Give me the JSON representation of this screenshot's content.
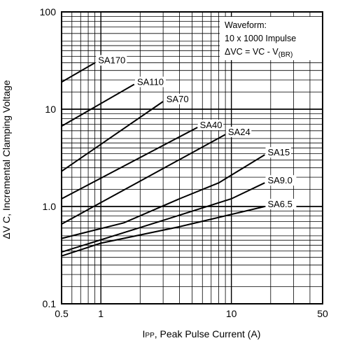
{
  "chart_data": {
    "type": "line",
    "x_scale": "log",
    "y_scale": "log",
    "xlim": [
      0.5,
      50
    ],
    "ylim": [
      0.1,
      100
    ],
    "grid": true,
    "x_ticks": [
      {
        "value": 0.5,
        "label": "0.5"
      },
      {
        "value": 1,
        "label": "1"
      },
      {
        "value": 10,
        "label": "10"
      },
      {
        "value": 50,
        "label": "50"
      }
    ],
    "y_ticks": [
      {
        "value": 0.1,
        "label": "0.1"
      },
      {
        "value": 1,
        "label": "1.0"
      },
      {
        "value": 10,
        "label": "10"
      },
      {
        "value": 100,
        "label": "100"
      }
    ],
    "xlabel_main": "I",
    "xlabel_sub": "PP",
    "xlabel_rest": ", Peak Pulse Current (A)",
    "ylabel": "ΔV C, Incremental Clamping Voltage",
    "annotation": {
      "line1": "Waveform:",
      "line2": "10 x 1000 Impulse",
      "line3_main": "ΔVC = VC - V",
      "line3_sub": "(BR)"
    },
    "series": [
      {
        "name": "SA170",
        "points": [
          [
            0.5,
            19
          ],
          [
            0.9,
            30
          ]
        ],
        "label_at": [
          0.93,
          30
        ]
      },
      {
        "name": "SA110",
        "points": [
          [
            0.5,
            6.7
          ],
          [
            1.8,
            18
          ]
        ],
        "label_at": [
          1.85,
          18
        ]
      },
      {
        "name": "SA70",
        "points": [
          [
            0.5,
            2.3
          ],
          [
            3.0,
            12
          ]
        ],
        "label_at": [
          3.1,
          12
        ]
      },
      {
        "name": "SA40",
        "points": [
          [
            0.5,
            1.2
          ],
          [
            5.5,
            6.5
          ]
        ],
        "label_at": [
          5.6,
          6.5
        ]
      },
      {
        "name": "SA24",
        "points": [
          [
            0.5,
            0.66
          ],
          [
            9.0,
            5.5
          ]
        ],
        "label_at": [
          9.2,
          5.5
        ]
      },
      {
        "name": "SA15",
        "points": [
          [
            0.5,
            0.47
          ],
          [
            1.5,
            0.68
          ],
          [
            4.0,
            1.2
          ],
          [
            8.0,
            1.75
          ],
          [
            18.0,
            3.4
          ]
        ],
        "label_at": [
          18.5,
          3.4
        ]
      },
      {
        "name": "SA9.0",
        "points": [
          [
            0.5,
            0.34
          ],
          [
            3.0,
            0.72
          ],
          [
            10.0,
            1.2
          ],
          [
            18.0,
            1.75
          ]
        ],
        "label_at": [
          18.5,
          1.75
        ]
      },
      {
        "name": "SA6.5",
        "points": [
          [
            0.5,
            0.31
          ],
          [
            1.0,
            0.42
          ],
          [
            4.0,
            0.62
          ],
          [
            18.0,
            1.0
          ]
        ],
        "label_at": [
          18.5,
          1.0
        ]
      }
    ]
  }
}
